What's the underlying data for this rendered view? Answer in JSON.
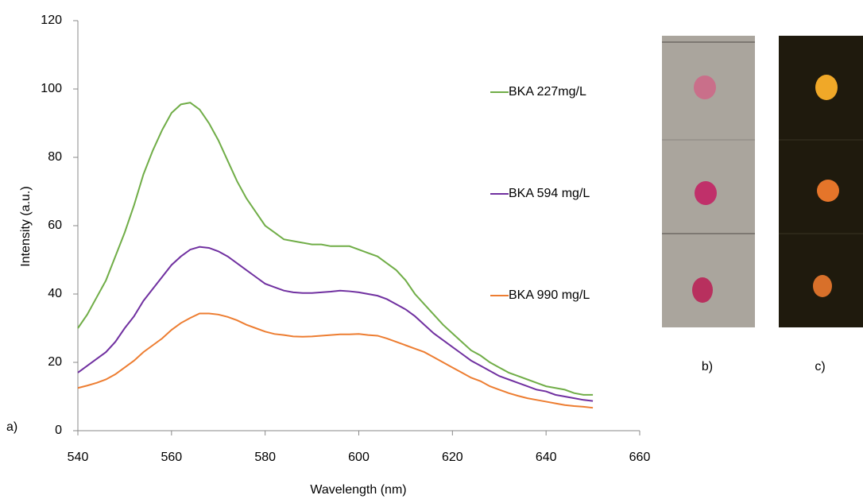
{
  "chart_data": {
    "type": "line",
    "xlabel": "Wavelength (nm)",
    "ylabel": "Intensity (a.u.)",
    "xlim": [
      540,
      660
    ],
    "xticks": [
      540,
      560,
      580,
      600,
      620,
      640,
      660
    ],
    "ylim": [
      0,
      120
    ],
    "yticks": [
      0,
      20,
      40,
      60,
      80,
      100,
      120
    ],
    "grid": false,
    "panel_labels": [
      "a)",
      "b)",
      "c)"
    ],
    "x": [
      540,
      542,
      544,
      546,
      548,
      550,
      552,
      554,
      556,
      558,
      560,
      562,
      564,
      566,
      568,
      570,
      572,
      574,
      576,
      578,
      580,
      582,
      584,
      586,
      588,
      590,
      592,
      594,
      596,
      598,
      600,
      602,
      604,
      606,
      608,
      610,
      612,
      614,
      616,
      618,
      620,
      622,
      624,
      626,
      628,
      630,
      632,
      634,
      636,
      638,
      640,
      642,
      644,
      646,
      648,
      650
    ],
    "series": [
      {
        "name": "BKA 227mg/L",
        "color": "#70ad47",
        "values": [
          30,
          34,
          39,
          44,
          51,
          58,
          66,
          75,
          82,
          88,
          93,
          95.5,
          96,
          94,
          90,
          85,
          79,
          73,
          68,
          64,
          60,
          58,
          56,
          55.5,
          55,
          54.5,
          54.5,
          54,
          54,
          54,
          53,
          52,
          51,
          49,
          47,
          44,
          40,
          37,
          34,
          31,
          28.5,
          26,
          23.5,
          22,
          20,
          18.5,
          17,
          16,
          15,
          14,
          13,
          12.5,
          12,
          11,
          10.5,
          10.5
        ]
      },
      {
        "name": "BKA 594 mg/L",
        "color": "#7030a0",
        "values": [
          17,
          19,
          21,
          23,
          26,
          30,
          33.5,
          38,
          41.5,
          45,
          48.5,
          51,
          53,
          53.8,
          53.5,
          52.5,
          51,
          49,
          47,
          45,
          43,
          42,
          41,
          40.5,
          40.3,
          40.3,
          40.5,
          40.7,
          41,
          40.8,
          40.5,
          40,
          39.5,
          38.5,
          37,
          35.5,
          33.5,
          31,
          28.5,
          26.5,
          24.5,
          22.5,
          20.5,
          19,
          17.5,
          16,
          15,
          14,
          13,
          12,
          11.5,
          10.5,
          10,
          9.5,
          9,
          8.7
        ]
      },
      {
        "name": "BKA 990 mg/L",
        "color": "#ed7d31",
        "values": [
          12.5,
          13.2,
          14,
          15,
          16.5,
          18.5,
          20.5,
          23,
          25,
          27,
          29.5,
          31.5,
          33,
          34.3,
          34.3,
          34,
          33.3,
          32.3,
          31,
          30,
          29,
          28.3,
          28,
          27.6,
          27.5,
          27.6,
          27.8,
          28,
          28.2,
          28.2,
          28.3,
          28,
          27.8,
          27,
          26,
          25,
          24,
          23,
          21.5,
          20,
          18.5,
          17,
          15.5,
          14.5,
          13,
          12,
          11,
          10.2,
          9.5,
          9,
          8.5,
          8,
          7.5,
          7.2,
          7,
          6.7
        ]
      }
    ]
  }
}
